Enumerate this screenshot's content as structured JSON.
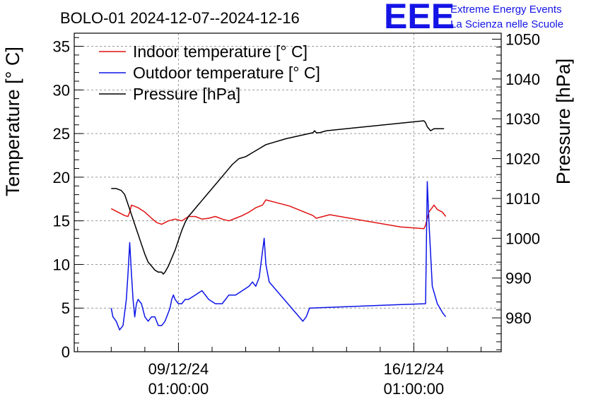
{
  "colors": {
    "indoor": "#e11212",
    "outdoor": "#0c14e6",
    "pressure": "#000000",
    "logo": "#1414e6",
    "grid": "#9a9a9a"
  },
  "logo": {
    "text": "EEE",
    "line1": "Extreme Energy Events",
    "line2": "La Scienza nelle Scuole"
  },
  "chart_data": {
    "type": "line",
    "title": "BOLO-01 2024-12-07--2024-12-16",
    "ylabel": "Temperature [° C]",
    "y2label": "Pressure [hPa]",
    "x_range_days": [
      -1.1,
      11.6
    ],
    "ylim": [
      0,
      36.5
    ],
    "y2lim": [
      971.5,
      1051.5
    ],
    "x_ticks": [
      {
        "day": 2.0,
        "date": "09/12/24",
        "time": "01:00:00"
      },
      {
        "day": 9.0,
        "date": "16/12/24",
        "time": "01:00:00"
      }
    ],
    "y_ticks": [
      0,
      5,
      10,
      15,
      20,
      25,
      30,
      35
    ],
    "y2_ticks": [
      980,
      990,
      1000,
      1010,
      1020,
      1030,
      1040,
      1050
    ],
    "grid": true,
    "legend_position": "top-left",
    "series": [
      {
        "name": "Indoor temperature [° C]",
        "axis": "left",
        "color": "#e11212",
        "x": [
          0,
          0.3,
          0.4,
          0.5,
          0.55,
          0.6,
          0.8,
          1.0,
          1.2,
          1.35,
          1.5,
          1.7,
          1.9,
          2.1,
          2.3,
          2.5,
          2.7,
          2.9,
          3.1,
          3.3,
          3.5,
          3.7,
          3.9,
          4.1,
          4.3,
          4.5,
          4.6,
          5.3,
          6.0,
          6.1,
          6.5,
          8.6,
          9.3,
          9.35,
          9.45,
          9.6,
          9.7,
          9.85,
          9.95
        ],
        "values": [
          16.4,
          15.8,
          15.6,
          15.5,
          16.0,
          16.8,
          16.5,
          16.0,
          15.3,
          14.8,
          14.6,
          15.0,
          15.2,
          15.0,
          15.5,
          15.5,
          15.2,
          15.3,
          15.5,
          15.2,
          15.0,
          15.3,
          15.6,
          16.0,
          16.5,
          16.8,
          17.4,
          16.7,
          15.6,
          15.3,
          15.7,
          14.3,
          14.1,
          14.5,
          16.0,
          16.8,
          16.3,
          16.0,
          15.5
        ]
      },
      {
        "name": "Outdoor temperature [° C]",
        "axis": "left",
        "color": "#0c14e6",
        "x": [
          0,
          0.05,
          0.15,
          0.25,
          0.35,
          0.45,
          0.5,
          0.55,
          0.6,
          0.65,
          0.7,
          0.75,
          0.8,
          0.9,
          1.0,
          1.1,
          1.2,
          1.3,
          1.4,
          1.5,
          1.6,
          1.7,
          1.75,
          1.8,
          1.85,
          1.9,
          2.0,
          2.1,
          2.2,
          2.3,
          2.5,
          2.7,
          2.9,
          3.1,
          3.3,
          3.5,
          3.7,
          3.9,
          4.1,
          4.2,
          4.3,
          4.4,
          4.55,
          4.6,
          4.7,
          5.7,
          5.8,
          5.9,
          8.6,
          9.35,
          9.4,
          9.45,
          9.55,
          9.7,
          9.85,
          9.95
        ],
        "values": [
          5.0,
          4.0,
          3.5,
          2.5,
          3.0,
          6.0,
          9.0,
          12.5,
          9.0,
          6.0,
          4.0,
          5.5,
          6.0,
          5.5,
          4.0,
          3.5,
          4.0,
          4.0,
          3.0,
          3.0,
          3.5,
          4.5,
          5.0,
          6.0,
          6.5,
          6.0,
          5.5,
          5.5,
          6.0,
          6.0,
          6.5,
          7.0,
          6.0,
          5.5,
          5.5,
          6.5,
          6.5,
          7.0,
          7.5,
          8.0,
          7.5,
          8.5,
          13.0,
          10.0,
          8.0,
          3.5,
          4.0,
          5.0,
          5.4,
          5.5,
          19.5,
          15.0,
          7.5,
          5.5,
          4.5,
          4.0
        ]
      },
      {
        "name": "Pressure [hPa]",
        "axis": "right",
        "color": "#000000",
        "x": [
          0,
          0.15,
          0.3,
          0.4,
          0.5,
          0.6,
          0.7,
          0.8,
          0.9,
          1.0,
          1.1,
          1.2,
          1.3,
          1.4,
          1.5,
          1.55,
          1.6,
          1.7,
          1.8,
          1.9,
          2.0,
          2.1,
          2.2,
          2.3,
          2.4,
          2.5,
          2.6,
          2.7,
          2.8,
          2.9,
          3.0,
          3.2,
          3.4,
          3.6,
          3.8,
          4.0,
          4.2,
          4.4,
          4.6,
          5.2,
          6.0,
          6.05,
          6.1,
          6.2,
          6.4,
          9.3,
          9.35,
          9.4,
          9.5,
          9.6,
          9.9
        ],
        "values": [
          1012.5,
          1012.5,
          1012.0,
          1011.0,
          1008.5,
          1006.0,
          1003.5,
          1001.0,
          998.5,
          996.0,
          994.0,
          993.0,
          992.0,
          991.5,
          991.5,
          991.0,
          991.5,
          993.0,
          995.0,
          997.0,
          999.5,
          1002.0,
          1004.0,
          1005.5,
          1006.5,
          1007.5,
          1008.5,
          1009.5,
          1010.5,
          1011.5,
          1012.5,
          1014.5,
          1016.5,
          1018.5,
          1020.0,
          1020.5,
          1021.5,
          1022.5,
          1023.5,
          1025.0,
          1026.5,
          1027.0,
          1026.5,
          1026.5,
          1027.0,
          1029.5,
          1029.0,
          1028.0,
          1027.0,
          1027.5,
          1027.5
        ]
      }
    ]
  }
}
